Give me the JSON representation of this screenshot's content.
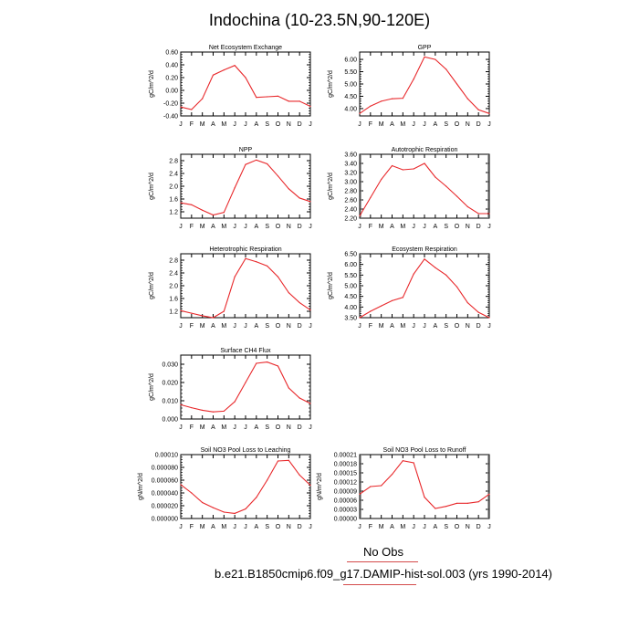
{
  "page": {
    "title": "Indochina (10-23.5N,90-120E)",
    "legend_label": "No Obs",
    "case_label": "b.e21.B1850cmip6.f09_g17.DAMIP-hist-sol.003 (yrs 1990-2014)"
  },
  "colors": {
    "series": "#e8282b",
    "axis": "#000000"
  },
  "chart_data": [
    {
      "type": "line",
      "title": "Net Ecosystem Exchange",
      "ylabel": "gC/m^2/d",
      "categories": [
        "J",
        "F",
        "M",
        "A",
        "M",
        "J",
        "J",
        "A",
        "S",
        "O",
        "N",
        "D",
        "J"
      ],
      "ylim": [
        -0.4,
        0.6
      ],
      "yticks": [
        -0.4,
        -0.2,
        0.0,
        0.2,
        0.4,
        0.6
      ],
      "ytick_labels": [
        "-0.40",
        "-0.20",
        "0.00",
        "0.20",
        "0.40",
        "0.60"
      ],
      "values": [
        -0.26,
        -0.3,
        -0.13,
        0.24,
        0.32,
        0.39,
        0.2,
        -0.11,
        -0.1,
        -0.09,
        -0.17,
        -0.17,
        -0.25
      ]
    },
    {
      "type": "line",
      "title": "GPP",
      "ylabel": "gC/m^2/d",
      "categories": [
        "J",
        "F",
        "M",
        "A",
        "M",
        "J",
        "J",
        "A",
        "S",
        "O",
        "N",
        "D",
        "J"
      ],
      "ylim": [
        3.7,
        6.3
      ],
      "yticks": [
        4.0,
        4.5,
        5.0,
        5.5,
        6.0
      ],
      "ytick_labels": [
        "4.00",
        "4.50",
        "5.00",
        "5.50",
        "6.00"
      ],
      "values": [
        3.8,
        4.1,
        4.3,
        4.4,
        4.42,
        5.2,
        6.1,
        6.0,
        5.6,
        5.0,
        4.4,
        3.95,
        3.8
      ]
    },
    {
      "type": "line",
      "title": "NPP",
      "ylabel": "gC/m^2/d",
      "categories": [
        "J",
        "F",
        "M",
        "A",
        "M",
        "J",
        "J",
        "A",
        "S",
        "O",
        "N",
        "D",
        "J"
      ],
      "ylim": [
        1.0,
        3.0
      ],
      "yticks": [
        1.2,
        1.6,
        2.0,
        2.4,
        2.8
      ],
      "ytick_labels": [
        "1.2",
        "1.6",
        "2.0",
        "2.4",
        "2.8"
      ],
      "values": [
        1.48,
        1.42,
        1.25,
        1.1,
        1.18,
        1.95,
        2.68,
        2.82,
        2.7,
        2.32,
        1.92,
        1.63,
        1.52
      ]
    },
    {
      "type": "line",
      "title": "Autotrophic Respiration",
      "ylabel": "gC/m^2/d",
      "categories": [
        "J",
        "F",
        "M",
        "A",
        "M",
        "J",
        "J",
        "A",
        "S",
        "O",
        "N",
        "D",
        "J"
      ],
      "ylim": [
        2.2,
        3.6
      ],
      "yticks": [
        2.2,
        2.4,
        2.6,
        2.8,
        3.0,
        3.2,
        3.4,
        3.6
      ],
      "ytick_labels": [
        "2.20",
        "2.40",
        "2.60",
        "2.80",
        "3.00",
        "3.20",
        "3.40",
        "3.60"
      ],
      "values": [
        2.25,
        2.65,
        3.05,
        3.35,
        3.26,
        3.28,
        3.4,
        3.1,
        2.9,
        2.68,
        2.45,
        2.3,
        2.3
      ]
    },
    {
      "type": "line",
      "title": "Heterotrophic Respiration",
      "ylabel": "gC/m^2/d",
      "categories": [
        "J",
        "F",
        "M",
        "A",
        "M",
        "J",
        "J",
        "A",
        "S",
        "O",
        "N",
        "D",
        "J"
      ],
      "ylim": [
        1.0,
        3.0
      ],
      "yticks": [
        1.2,
        1.6,
        2.0,
        2.4,
        2.8
      ],
      "ytick_labels": [
        "1.2",
        "1.6",
        "2.0",
        "2.4",
        "2.8"
      ],
      "values": [
        1.22,
        1.14,
        1.06,
        1.0,
        1.2,
        2.28,
        2.85,
        2.75,
        2.62,
        2.28,
        1.78,
        1.47,
        1.24
      ]
    },
    {
      "type": "line",
      "title": "Ecosystem Respiration",
      "ylabel": "gC/m^2/d",
      "categories": [
        "J",
        "F",
        "M",
        "A",
        "M",
        "J",
        "J",
        "A",
        "S",
        "O",
        "N",
        "D",
        "J"
      ],
      "ylim": [
        3.5,
        6.5
      ],
      "yticks": [
        3.5,
        4.0,
        4.5,
        5.0,
        5.5,
        6.0,
        6.5
      ],
      "ytick_labels": [
        "3.50",
        "4.00",
        "4.50",
        "5.00",
        "5.50",
        "6.00",
        "6.50"
      ],
      "values": [
        3.5,
        3.8,
        4.05,
        4.3,
        4.45,
        5.55,
        6.25,
        5.85,
        5.5,
        4.95,
        4.2,
        3.75,
        3.5
      ]
    },
    {
      "type": "line",
      "title": "Surface CH4 Flux",
      "ylabel": "gC/m^2/d",
      "categories": [
        "J",
        "F",
        "M",
        "A",
        "M",
        "J",
        "J",
        "A",
        "S",
        "O",
        "N",
        "D",
        "J"
      ],
      "ylim": [
        0.0,
        0.035
      ],
      "yticks": [
        0.0,
        0.01,
        0.02,
        0.03
      ],
      "ytick_labels": [
        "0.000",
        "0.010",
        "0.020",
        "0.030"
      ],
      "values": [
        0.0078,
        0.0062,
        0.0048,
        0.0039,
        0.0043,
        0.0095,
        0.02,
        0.0305,
        0.0312,
        0.029,
        0.017,
        0.0115,
        0.0085
      ]
    },
    {
      "type": "line",
      "title": "Soil NO3 Pool Loss to Leaching",
      "ylabel": "gN/m^2/d",
      "categories": [
        "J",
        "F",
        "M",
        "A",
        "M",
        "J",
        "J",
        "A",
        "S",
        "O",
        "N",
        "D",
        "J"
      ],
      "ylim": [
        0.0,
        0.0001
      ],
      "yticks": [
        0.0,
        2e-05,
        4e-05,
        6e-05,
        8e-05,
        0.0001
      ],
      "ytick_labels": [
        "0.000000",
        "0.000020",
        "0.000040",
        "0.000060",
        "0.000080",
        "0.00010"
      ],
      "values": [
        5.3e-05,
        4e-05,
        2.5e-05,
        1.7e-05,
        1e-05,
        8e-06,
        1.5e-05,
        3.3e-05,
        6e-05,
        9e-05,
        9.1e-05,
        6.8e-05,
        5.2e-05
      ]
    },
    {
      "type": "line",
      "title": "Soil NO3 Pool Loss to Runoff",
      "ylabel": "gN/m^2/d",
      "categories": [
        "J",
        "F",
        "M",
        "A",
        "M",
        "J",
        "J",
        "A",
        "S",
        "O",
        "N",
        "D",
        "J"
      ],
      "ylim": [
        0.0,
        0.00021
      ],
      "yticks": [
        0.0,
        3e-05,
        6e-05,
        9e-05,
        0.00012,
        0.00015,
        0.00018,
        0.00021
      ],
      "ytick_labels": [
        "0.00000",
        "0.00003",
        "0.00006",
        "0.00009",
        "0.00012",
        "0.00015",
        "0.00018",
        "0.00021"
      ],
      "values": [
        8e-05,
        0.000105,
        0.000108,
        0.000145,
        0.00019,
        0.000183,
        7e-05,
        3.3e-05,
        4e-05,
        5e-05,
        5e-05,
        5.5e-05,
        8e-05
      ]
    }
  ]
}
